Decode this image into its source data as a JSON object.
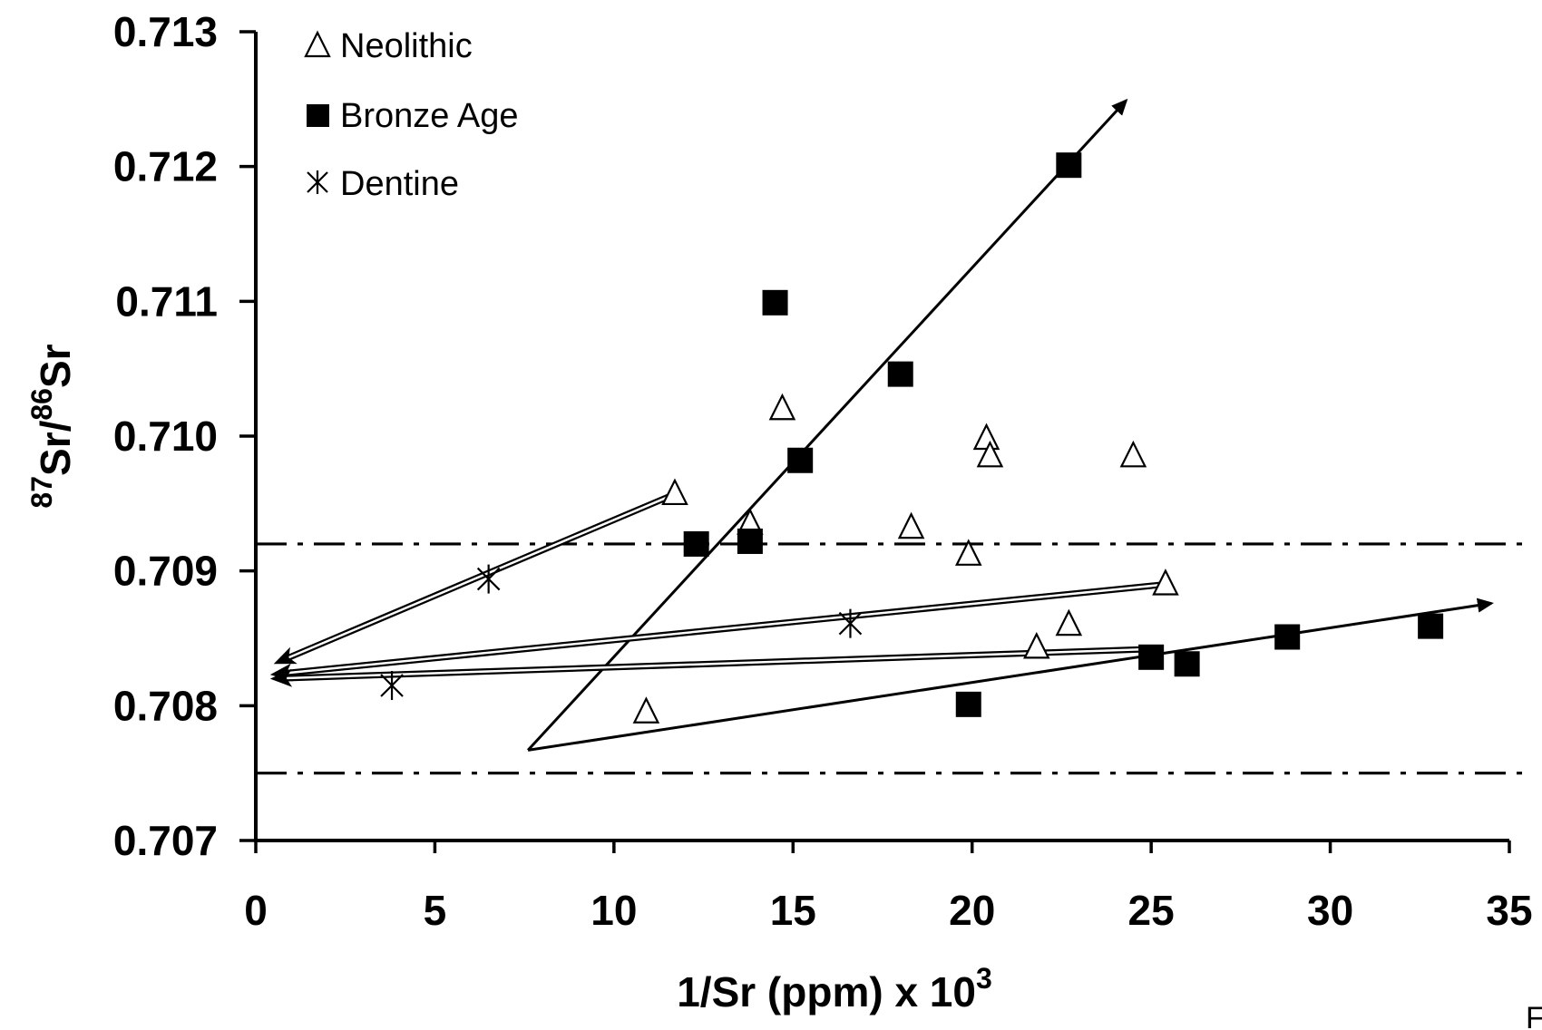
{
  "chart_data": {
    "type": "scatter",
    "xlabel": {
      "main": "1/Sr (ppm) x 10",
      "sup": "3"
    },
    "ylabel": {
      "sup1": "87",
      "part1": "Sr/",
      "sup2": "86",
      "part2": "Sr"
    },
    "xlim": [
      0,
      35
    ],
    "ylim": [
      0.707,
      0.713
    ],
    "x_ticks": [
      0,
      5,
      10,
      15,
      20,
      25,
      30,
      35
    ],
    "y_ticks": [
      0.707,
      0.708,
      0.709,
      0.71,
      0.711,
      0.712,
      0.713
    ],
    "x_tick_labels": [
      "0",
      "5",
      "10",
      "15",
      "20",
      "25",
      "30",
      "35"
    ],
    "y_tick_labels": [
      "0.707",
      "0.708",
      "0.709",
      "0.710",
      "0.711",
      "0.712",
      "0.713"
    ],
    "grid": false,
    "legend_position": "top-left",
    "series": [
      {
        "name": "Neolithic",
        "marker": "open-triangle",
        "points": [
          [
            11.7,
            0.70957
          ],
          [
            13.8,
            0.70935
          ],
          [
            14.7,
            0.7102
          ],
          [
            18.3,
            0.70932
          ],
          [
            19.9,
            0.70912
          ],
          [
            20.4,
            0.70998
          ],
          [
            20.5,
            0.70985
          ],
          [
            24.5,
            0.70985
          ],
          [
            25.4,
            0.7089
          ],
          [
            22.7,
            0.7086
          ],
          [
            21.8,
            0.70843
          ],
          [
            10.9,
            0.70795
          ]
        ]
      },
      {
        "name": "Bronze Age",
        "marker": "filled-square",
        "points": [
          [
            22.7,
            0.71201
          ],
          [
            14.5,
            0.71099
          ],
          [
            18.0,
            0.71046
          ],
          [
            15.2,
            0.70982
          ],
          [
            12.3,
            0.7092
          ],
          [
            13.8,
            0.70922
          ],
          [
            19.9,
            0.70801
          ],
          [
            25.0,
            0.70836
          ],
          [
            26.0,
            0.70831
          ],
          [
            28.8,
            0.70851
          ],
          [
            32.8,
            0.70859
          ]
        ]
      },
      {
        "name": "Dentine",
        "marker": "asterisk",
        "points": [
          [
            6.5,
            0.70894
          ],
          [
            16.6,
            0.70861
          ],
          [
            3.8,
            0.70815
          ]
        ]
      }
    ],
    "reference_lines": [
      {
        "y": 0.7092,
        "style": "dash-dot"
      },
      {
        "y": 0.7075,
        "style": "dash-dot"
      }
    ],
    "trend_arrows": [
      {
        "style": "single",
        "from": [
          7.6,
          0.70767
        ],
        "to": [
          24.3,
          0.71249
        ]
      },
      {
        "style": "single",
        "from": [
          7.6,
          0.70767
        ],
        "to": [
          34.5,
          0.70876
        ]
      },
      {
        "style": "double",
        "from": [
          11.7,
          0.70957
        ],
        "to": [
          0.5,
          0.70831
        ]
      },
      {
        "style": "double",
        "from": [
          25.4,
          0.7089
        ],
        "to": [
          0.4,
          0.70823
        ]
      },
      {
        "style": "double",
        "from": [
          25.0,
          0.70842
        ],
        "to": [
          0.4,
          0.7082
        ]
      }
    ],
    "colors": {
      "ink": "#000000",
      "background": "#ffffff"
    }
  },
  "corner_text": "F"
}
